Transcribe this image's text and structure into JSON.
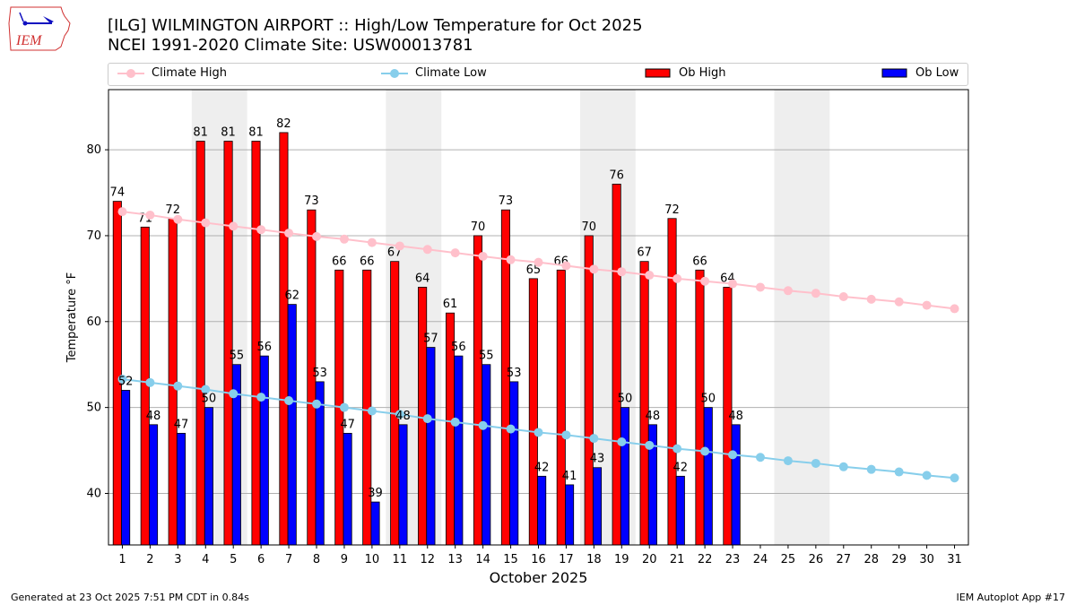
{
  "header": {
    "logo_text": "IEM",
    "title_line1": "[ILG] WILMINGTON AIRPORT :: High/Low Temperature for Oct 2025",
    "title_line2": "NCEI 1991-2020 Climate Site: USW00013781"
  },
  "footer": {
    "left": "Generated at 23 Oct 2025 7:51 PM CDT in 0.84s",
    "right": "IEM Autoplot App #17"
  },
  "colors": {
    "ob_high": "#ff0000",
    "ob_low": "#0000ff",
    "climate_high": "#ffc0cb",
    "climate_low": "#87ceeb",
    "weekend": "#eeeeee"
  },
  "chart_data": {
    "type": "bar",
    "title": "[ILG] WILMINGTON AIRPORT :: High/Low Temperature for Oct 2025",
    "subtitle": "NCEI 1991-2020 Climate Site: USW00013781",
    "xlabel": "October 2025",
    "ylabel": "Temperature °F",
    "ylim": [
      34,
      87
    ],
    "xlim": [
      0.5,
      31.5
    ],
    "yticks": [
      40,
      50,
      60,
      70,
      80
    ],
    "grid": "y",
    "legend_position": "top",
    "categories": [
      1,
      2,
      3,
      4,
      5,
      6,
      7,
      8,
      9,
      10,
      11,
      12,
      13,
      14,
      15,
      16,
      17,
      18,
      19,
      20,
      21,
      22,
      23,
      24,
      25,
      26,
      27,
      28,
      29,
      30,
      31
    ],
    "weekend_days": [
      [
        4,
        5
      ],
      [
        11,
        12
      ],
      [
        18,
        19
      ],
      [
        25,
        26
      ]
    ],
    "legend": [
      "Climate High",
      "Climate Low",
      "Ob High",
      "Ob Low"
    ],
    "series": [
      {
        "name": "Ob High",
        "type": "bar",
        "values": [
          74,
          71,
          72,
          81,
          81,
          81,
          82,
          73,
          66,
          66,
          67,
          64,
          61,
          70,
          73,
          65,
          66,
          70,
          76,
          67,
          72,
          66,
          64
        ]
      },
      {
        "name": "Ob Low",
        "type": "bar",
        "values": [
          52,
          48,
          47,
          50,
          55,
          56,
          62,
          53,
          47,
          39,
          48,
          57,
          56,
          55,
          53,
          42,
          41,
          43,
          50,
          48,
          42,
          50,
          48
        ]
      },
      {
        "name": "Climate High",
        "type": "line",
        "values": [
          72.8,
          72.4,
          71.9,
          71.5,
          71.1,
          70.7,
          70.3,
          69.9,
          69.6,
          69.2,
          68.8,
          68.4,
          68.0,
          67.6,
          67.2,
          66.9,
          66.5,
          66.1,
          65.8,
          65.4,
          65.0,
          64.7,
          64.4,
          64.0,
          63.6,
          63.3,
          62.9,
          62.6,
          62.3,
          61.9,
          61.5
        ]
      },
      {
        "name": "Climate Low",
        "type": "line",
        "values": [
          53.3,
          52.9,
          52.5,
          52.1,
          51.6,
          51.2,
          50.8,
          50.4,
          50.0,
          49.6,
          49.2,
          48.7,
          48.3,
          47.9,
          47.5,
          47.1,
          46.8,
          46.4,
          46.0,
          45.6,
          45.2,
          44.9,
          44.5,
          44.2,
          43.8,
          43.5,
          43.1,
          42.8,
          42.5,
          42.1,
          41.8
        ]
      }
    ]
  }
}
